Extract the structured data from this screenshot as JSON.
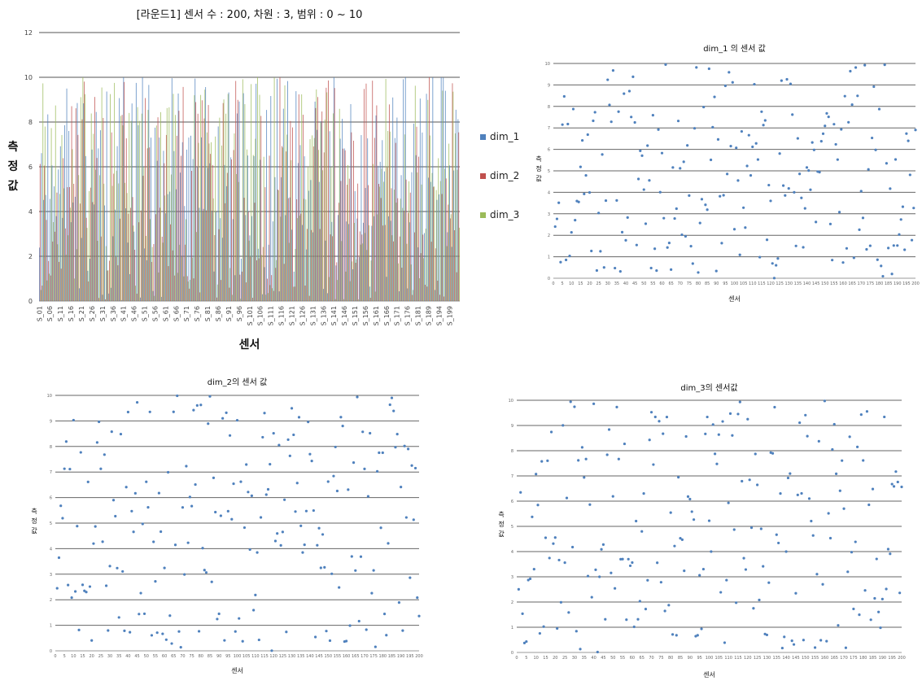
{
  "chart_data": [
    {
      "id": "main",
      "type": "bar",
      "title": "[라운드1] 센서 수 :   200,  차원 : 3, 범위 : 0   ~ 10",
      "xlabel": "센서",
      "ylabel": "측정값",
      "ylim": [
        0,
        12
      ],
      "yticks": [
        0,
        2,
        4,
        6,
        8,
        10,
        12
      ],
      "categories_visible": [
        "S_01",
        "S_06",
        "S_11",
        "S_16",
        "S_21",
        "S_26",
        "S_31",
        "S_36",
        "S_41",
        "S_46",
        "S_51",
        "S_56",
        "S_61",
        "S_66",
        "S_71",
        "S_76",
        "S_81",
        "S_86",
        "S_91",
        "S_96",
        "S_101",
        "S_106",
        "S_111",
        "S_116",
        "S_121",
        "S_126",
        "S_131",
        "S_136",
        "S_141",
        "S_146",
        "S_151",
        "S_156",
        "S_161",
        "S_166",
        "S_171",
        "S_176",
        "S_181",
        "S_189",
        "S_194",
        "S_199"
      ],
      "series": [
        {
          "name": "dim_1",
          "color": "#4f81bd"
        },
        {
          "name": "dim_2",
          "color": "#c0504d"
        },
        {
          "name": "dim_3",
          "color": "#9bbb59"
        }
      ],
      "legend_position": "right",
      "grid": true,
      "n_sensors": 200
    },
    {
      "id": "dim1",
      "type": "scatter",
      "title": "dim_1 의 센서 값",
      "xlabel": "센서",
      "ylabel": "측정값",
      "xlim": [
        0,
        200
      ],
      "ylim": [
        0,
        10
      ],
      "yticks": [
        0,
        1,
        2,
        3,
        4,
        5,
        6,
        7,
        8,
        9,
        10
      ],
      "grid": true,
      "color": "#4f81bd",
      "seed": 11
    },
    {
      "id": "dim2",
      "type": "scatter",
      "title": "dim_2의 센서 값",
      "xlabel": "센서",
      "ylabel": "측정값",
      "xlim": [
        0,
        200
      ],
      "ylim": [
        0,
        10
      ],
      "yticks": [
        0,
        1,
        2,
        3,
        4,
        5,
        6,
        7,
        8,
        9,
        10
      ],
      "grid": true,
      "color": "#4f81bd",
      "seed": 23
    },
    {
      "id": "dim3",
      "type": "scatter",
      "title": "dim_3의 센서값",
      "xlabel": "센서",
      "ylabel": "측정값",
      "xlim": [
        0,
        200
      ],
      "ylim": [
        0,
        10
      ],
      "yticks": [
        0,
        1,
        2,
        3,
        4,
        5,
        6,
        7,
        8,
        9,
        10
      ],
      "grid": true,
      "color": "#4f81bd",
      "seed": 37
    }
  ]
}
